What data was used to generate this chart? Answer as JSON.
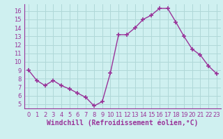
{
  "x": [
    0,
    1,
    2,
    3,
    4,
    5,
    6,
    7,
    8,
    9,
    10,
    11,
    12,
    13,
    14,
    15,
    16,
    17,
    18,
    19,
    20,
    21,
    22,
    23
  ],
  "y": [
    9.0,
    7.8,
    7.2,
    7.8,
    7.2,
    6.8,
    6.3,
    5.8,
    4.8,
    5.3,
    8.7,
    13.2,
    13.2,
    14.0,
    15.0,
    15.5,
    16.3,
    16.3,
    14.7,
    13.0,
    11.5,
    10.8,
    9.5,
    8.6
  ],
  "line_color": "#993399",
  "marker": "+",
  "markersize": 4,
  "markeredgewidth": 1.2,
  "linewidth": 1.0,
  "xlabel": "Windchill (Refroidissement éolien,°C)",
  "xlim": [
    -0.5,
    23.5
  ],
  "ylim": [
    4.5,
    16.8
  ],
  "yticks": [
    5,
    6,
    7,
    8,
    9,
    10,
    11,
    12,
    13,
    14,
    15,
    16
  ],
  "xticks": [
    0,
    1,
    2,
    3,
    4,
    5,
    6,
    7,
    8,
    9,
    10,
    11,
    12,
    13,
    14,
    15,
    16,
    17,
    18,
    19,
    20,
    21,
    22,
    23
  ],
  "background_color": "#cff0f0",
  "grid_color": "#b0d8d8",
  "tick_label_fontsize": 6,
  "xlabel_fontsize": 7
}
